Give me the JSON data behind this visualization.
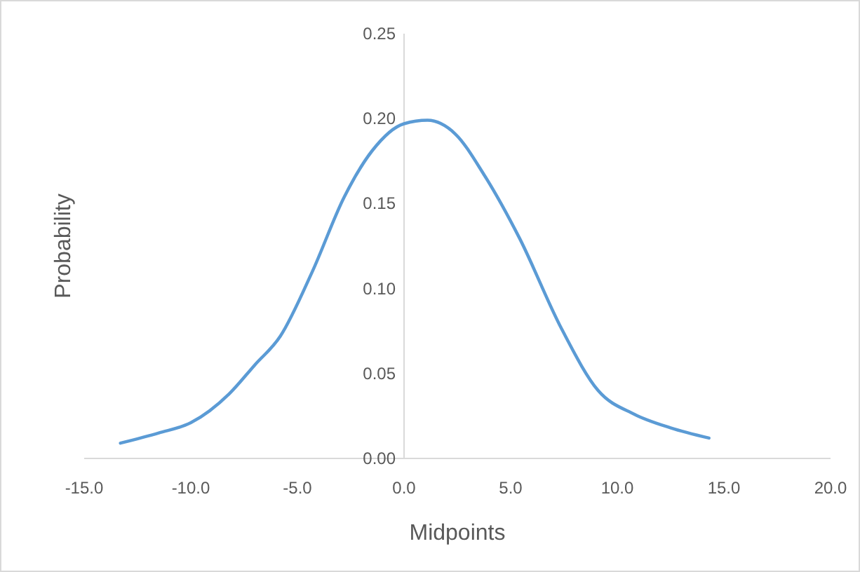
{
  "chart_data": {
    "type": "line",
    "xlabel": "Midpoints",
    "ylabel": "Probability",
    "series": [
      {
        "color": "#5b9bd5",
        "x": [
          -13.3,
          -11.5,
          -10,
          -8.2,
          -7,
          -5.8,
          -4.3,
          -2.8,
          -1.5,
          0,
          1.1,
          2.4,
          3.75,
          5.4,
          7.4,
          9.1,
          10.8,
          12.5,
          14.3
        ],
        "values": [
          0.009,
          0.015,
          0.021,
          0.038,
          0.055,
          0.072,
          0.11,
          0.154,
          0.181,
          0.197,
          0.199,
          0.191,
          0.167,
          0.13,
          0.076,
          0.04,
          0.026,
          0.018,
          0.012
        ]
      }
    ],
    "xlim": [
      -15,
      20
    ],
    "xticks": [
      {
        "value": -15,
        "label": "-15.0"
      },
      {
        "value": -10,
        "label": "-10.0"
      },
      {
        "value": -5,
        "label": "-5.0"
      },
      {
        "value": 0,
        "label": "0.0"
      },
      {
        "value": 5,
        "label": "5.0"
      },
      {
        "value": 10,
        "label": "10.0"
      },
      {
        "value": 15,
        "label": "15.0"
      },
      {
        "value": 20,
        "label": "20.0"
      }
    ],
    "ylim": [
      0,
      0.25
    ],
    "yticks": [
      {
        "value": 0,
        "label": "0.00"
      },
      {
        "value": 0.05,
        "label": "0.05"
      },
      {
        "value": 0.1,
        "label": "0.10"
      },
      {
        "value": 0.15,
        "label": "0.15"
      },
      {
        "value": 0.2,
        "label": "0.20"
      },
      {
        "value": 0.25,
        "label": "0.25"
      }
    ],
    "marker": "none",
    "line_style": "solid"
  }
}
